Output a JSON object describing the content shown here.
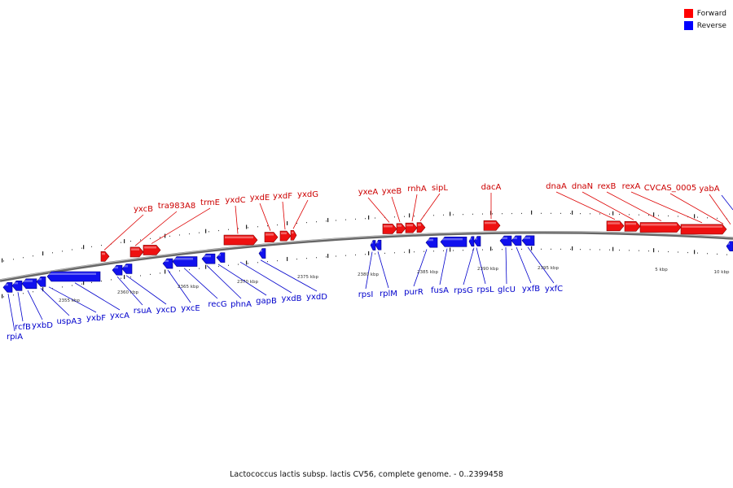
{
  "legend": {
    "forward_label": "Forward",
    "reverse_label": "Reverse",
    "forward_color": "#ff0000",
    "reverse_color": "#0000ff"
  },
  "caption": "Lactococcus lactis subsp. lactis CV56, complete genome. - 0..2399458",
  "scale_labels": [
    "2355 kbp",
    "2360 kbp",
    "2365 kbp",
    "2370 kbp",
    "2375 kbp",
    "2380 kbp",
    "2385 kbp",
    "2390 kbp",
    "2395 kbp",
    "5 kbp",
    "10 kbp"
  ],
  "forward_genes": [
    "yxcB",
    "tra983A8",
    "trmE",
    "yxdC",
    "yxdE",
    "yxdF",
    "yxdG",
    "yxeA",
    "yxeB",
    "rnhA",
    "sipL",
    "dacA",
    "dnaA",
    "dnaN",
    "rexB",
    "rexA",
    "CVCAS_0005",
    "yabA"
  ],
  "reverse_genes": [
    "rpiA",
    "rcfB",
    "yxbD",
    "uspA3",
    "yxbF",
    "yxcA",
    "rsuA",
    "yxcD",
    "yxcE",
    "recG",
    "phnA",
    "gapB",
    "yxdB",
    "yxdD",
    "rpsI",
    "rplM",
    "purR",
    "fusA",
    "rpsG",
    "rpsL",
    "glcU",
    "yxfB",
    "yxfC"
  ]
}
